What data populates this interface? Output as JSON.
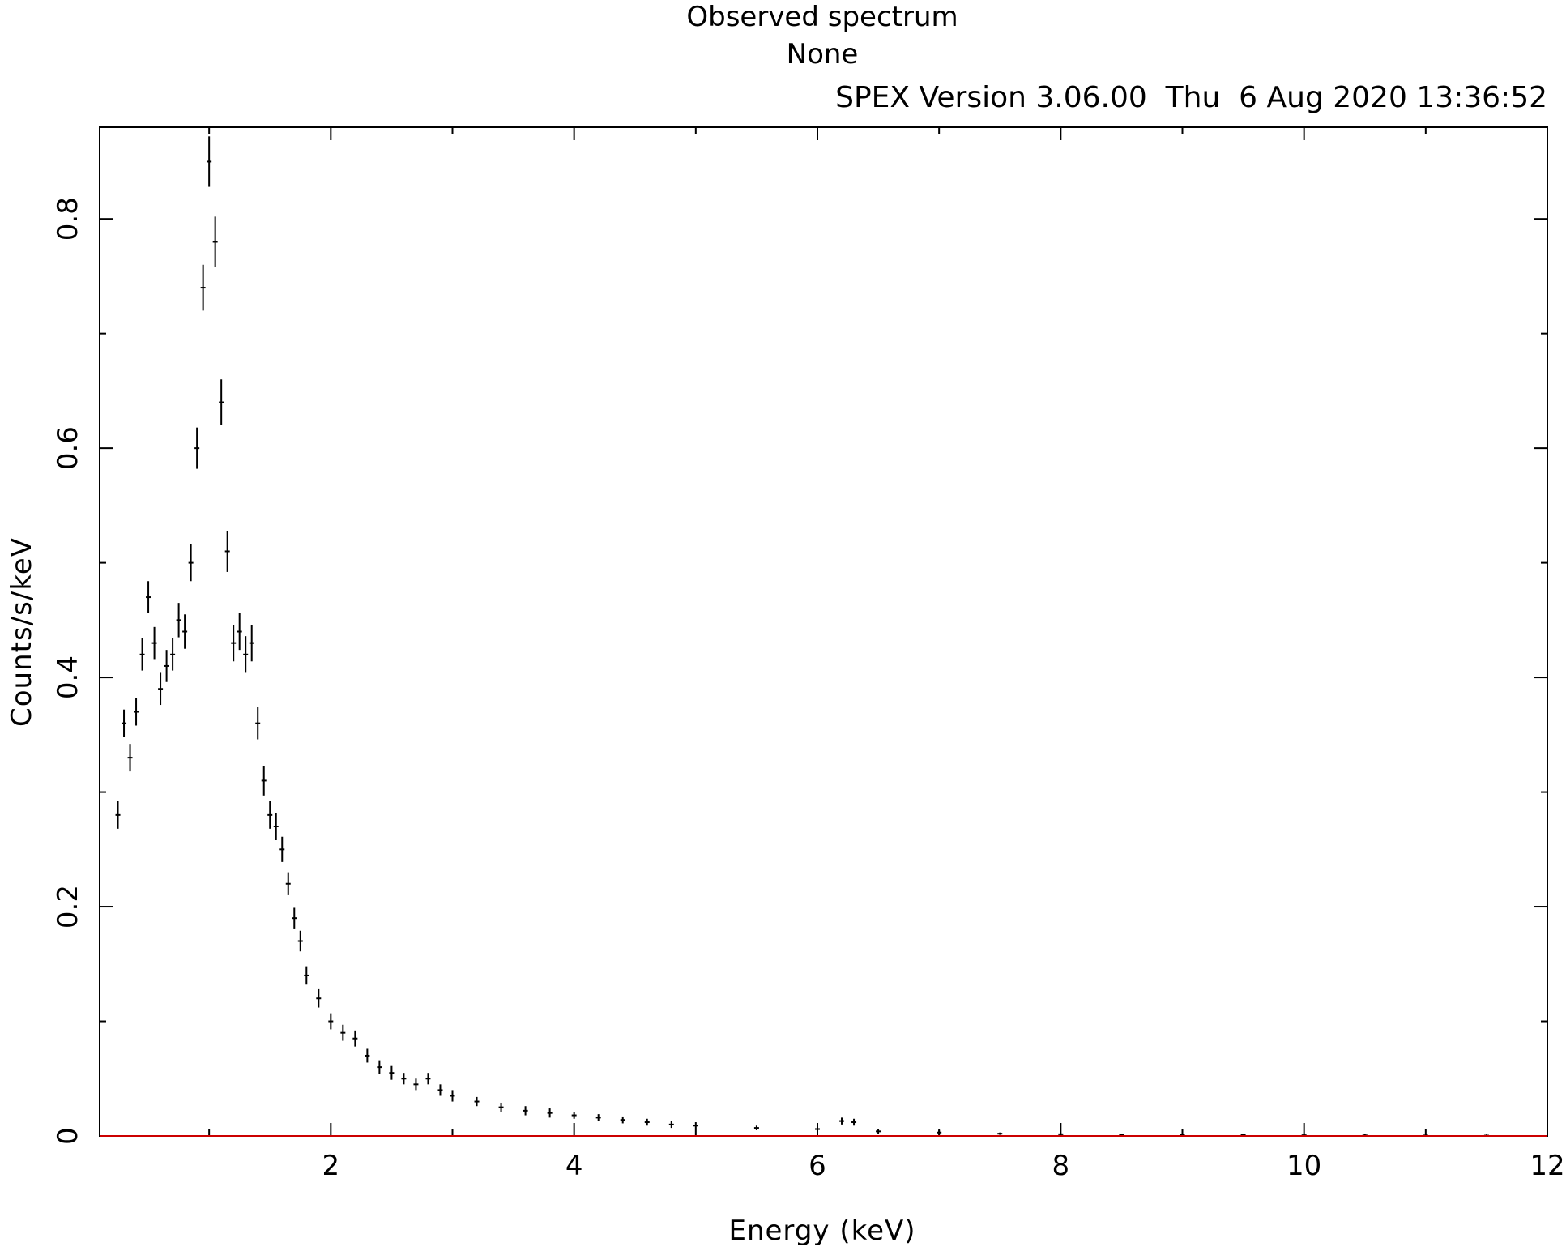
{
  "header": {
    "title": "Observed spectrum",
    "subtitle": "None",
    "version_line": "SPEX Version 3.06.00  Thu  6 Aug 2020 13:36:52"
  },
  "colors": {
    "data": "#000000",
    "model": "#cc0000",
    "background": "#3333cc"
  },
  "chart_data": {
    "type": "scatter",
    "title": "Observed spectrum",
    "subtitle": "None",
    "xlabel": "Energy (keV)",
    "ylabel": "Counts/s/keV",
    "xlim": [
      0.1,
      12
    ],
    "ylim": [
      0,
      0.88
    ],
    "grid": false,
    "x_ticks": [
      2,
      4,
      6,
      8,
      10,
      12
    ],
    "x_tick_labels": [
      "2",
      "4",
      "6",
      "8",
      "10",
      "12"
    ],
    "y_ticks": [
      0,
      0.2,
      0.4,
      0.6,
      0.8
    ],
    "y_tick_labels": [
      "0",
      "0.2",
      "0.4",
      "0.6",
      "0.8"
    ],
    "series": [
      {
        "style": "error-bar points",
        "x": [
          0.25,
          0.3,
          0.35,
          0.4,
          0.45,
          0.5,
          0.55,
          0.6,
          0.65,
          0.7,
          0.75,
          0.8,
          0.85,
          0.9,
          0.95,
          1.0,
          1.05,
          1.1,
          1.15,
          1.2,
          1.25,
          1.3,
          1.35,
          1.4,
          1.45,
          1.5,
          1.55,
          1.6,
          1.65,
          1.7,
          1.75,
          1.8,
          1.9,
          2.0,
          2.1,
          2.2,
          2.3,
          2.4,
          2.5,
          2.6,
          2.7,
          2.8,
          2.9,
          3.0,
          3.2,
          3.4,
          3.6,
          3.8,
          4.0,
          4.2,
          4.4,
          4.6,
          4.8,
          5.0,
          5.5,
          6.0,
          6.2,
          6.3,
          6.5,
          7.0,
          7.5,
          8.0,
          8.5,
          9.0,
          9.5,
          10.0,
          10.5,
          11.0,
          11.5
        ],
        "y": [
          0.28,
          0.36,
          0.33,
          0.37,
          0.42,
          0.47,
          0.43,
          0.39,
          0.41,
          0.42,
          0.45,
          0.44,
          0.5,
          0.6,
          0.74,
          0.85,
          0.78,
          0.64,
          0.51,
          0.43,
          0.44,
          0.42,
          0.43,
          0.36,
          0.31,
          0.28,
          0.27,
          0.25,
          0.22,
          0.19,
          0.17,
          0.14,
          0.12,
          0.1,
          0.09,
          0.085,
          0.07,
          0.06,
          0.055,
          0.05,
          0.045,
          0.05,
          0.04,
          0.035,
          0.03,
          0.025,
          0.022,
          0.02,
          0.018,
          0.016,
          0.014,
          0.012,
          0.01,
          0.009,
          0.007,
          0.006,
          0.013,
          0.012,
          0.004,
          0.003,
          0.002,
          0.0015,
          0.001,
          0.001,
          0.0008,
          0.0006,
          0.0005,
          0.0004,
          0.0003
        ],
        "y_err": [
          0.012,
          0.012,
          0.012,
          0.012,
          0.014,
          0.014,
          0.014,
          0.014,
          0.014,
          0.014,
          0.015,
          0.015,
          0.016,
          0.018,
          0.02,
          0.022,
          0.022,
          0.02,
          0.018,
          0.016,
          0.016,
          0.016,
          0.016,
          0.014,
          0.013,
          0.012,
          0.012,
          0.011,
          0.01,
          0.009,
          0.009,
          0.008,
          0.008,
          0.007,
          0.007,
          0.007,
          0.006,
          0.006,
          0.006,
          0.005,
          0.005,
          0.005,
          0.005,
          0.005,
          0.004,
          0.004,
          0.004,
          0.004,
          0.003,
          0.003,
          0.003,
          0.003,
          0.003,
          0.003,
          0.002,
          0.002,
          0.003,
          0.003,
          0.002,
          0.002,
          0.001,
          0.001,
          0.001,
          0.001,
          0.001,
          0.001,
          0.001,
          0.001,
          0.001
        ]
      },
      {
        "style": "line",
        "x": [
          0.1,
          12
        ],
        "y": [
          0,
          0
        ]
      }
    ]
  }
}
